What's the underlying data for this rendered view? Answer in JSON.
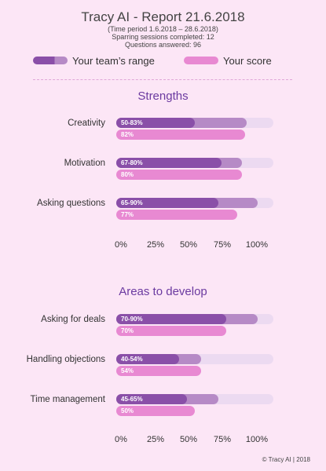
{
  "header": {
    "title": "Tracy AI - Report 21.6.2018",
    "period": "(Time period 1.6.2018 – 28.6.2018)",
    "sessions": "Sparring sessions completed: 12",
    "questions": "Questions answered: 96"
  },
  "legend": {
    "team_label": "Your team’s range",
    "score_label": "Your score"
  },
  "colors": {
    "background": "#fce6f6",
    "range_low": "#8a4fa8",
    "range_high": "#b68ac6",
    "score": "#e889d2",
    "track": "#ecdaf1",
    "section_title": "#6b3aa0"
  },
  "chart_data": [
    {
      "type": "bar",
      "title": "Strengths",
      "categories": [
        "Creativity",
        "Motivation",
        "Asking questions"
      ],
      "series": [
        {
          "name": "Your team’s range",
          "ranges": [
            [
              50,
              83
            ],
            [
              67,
              80
            ],
            [
              65,
              90
            ]
          ],
          "labels": [
            "50-83%",
            "67-80%",
            "65-90%"
          ]
        },
        {
          "name": "Your score",
          "values": [
            82,
            80,
            77
          ],
          "labels": [
            "82%",
            "80%",
            "77%"
          ]
        }
      ],
      "ticks": [
        "0%",
        "25%",
        "50%",
        "75%",
        "100%"
      ],
      "xlim": [
        0,
        100
      ]
    },
    {
      "type": "bar",
      "title": "Areas to develop",
      "categories": [
        "Asking for deals",
        "Handling objections",
        "Time management"
      ],
      "series": [
        {
          "name": "Your team’s range",
          "ranges": [
            [
              70,
              90
            ],
            [
              40,
              54
            ],
            [
              45,
              65
            ]
          ],
          "labels": [
            "70-90%",
            "40-54%",
            "45-65%"
          ]
        },
        {
          "name": "Your score",
          "values": [
            70,
            54,
            50
          ],
          "labels": [
            "70%",
            "54%",
            "50%"
          ]
        }
      ],
      "ticks": [
        "0%",
        "25%",
        "50%",
        "75%",
        "100%"
      ],
      "xlim": [
        0,
        100
      ]
    }
  ],
  "footer": "© Tracy AI | 2018"
}
